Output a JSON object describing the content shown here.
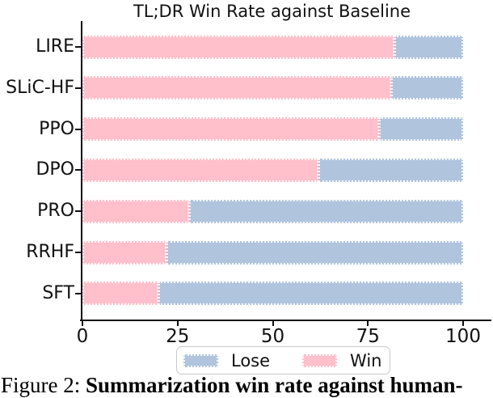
{
  "chart_data": {
    "type": "bar",
    "orientation": "horizontal-stacked",
    "title": "TL;DR Win Rate against Baseline",
    "categories": [
      "LIRE",
      "SLiC-HF",
      "PPO",
      "DPO",
      "PRO",
      "RRHF",
      "SFT"
    ],
    "series": [
      {
        "name": "Win",
        "color": "#FFC0CB",
        "values": [
          82,
          81,
          78,
          62,
          28,
          22,
          20
        ]
      },
      {
        "name": "Lose",
        "color": "#B0C4DE",
        "values": [
          18,
          19,
          22,
          38,
          72,
          78,
          80
        ]
      }
    ],
    "xlim": [
      0,
      100
    ],
    "x_ticks": [
      0,
      25,
      50,
      75,
      100
    ],
    "grid": false,
    "legend": {
      "position": "bottom-center",
      "entries": [
        "Lose",
        "Win"
      ]
    }
  },
  "caption": {
    "prefix": "Figure 2: ",
    "bold_text": "Summarization win rate against human-"
  },
  "colors": {
    "win": "#FFC0CB",
    "lose": "#B0C4DE",
    "axis": "#111111",
    "legend_border": "#c9c9c9"
  }
}
